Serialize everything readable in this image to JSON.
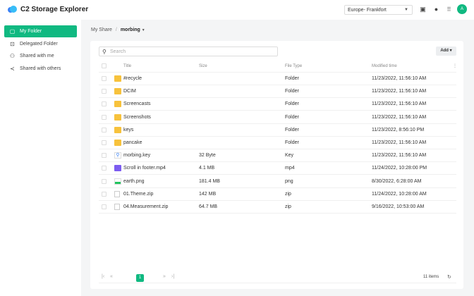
{
  "app": {
    "title": "C2 Storage Explorer",
    "region": "Europe- Frankfort",
    "avatar": "A",
    "accent": "#10b981"
  },
  "sidebar": {
    "items": [
      {
        "label": "My Folder",
        "icon": "folder-icon",
        "active": true
      },
      {
        "label": "Delegated Folder",
        "icon": "delegated-icon"
      },
      {
        "label": "Shared with me",
        "icon": "users-icon"
      },
      {
        "label": "Shared with others",
        "icon": "share-icon"
      }
    ]
  },
  "breadcrumb": {
    "root": "My Share",
    "sep": "/",
    "current": "morbing"
  },
  "toolbar": {
    "search_placeholder": "Search",
    "add_label": "Add"
  },
  "table": {
    "headers": [
      "Title",
      "Size",
      "File Type",
      "Modified time"
    ],
    "rows": [
      {
        "title": "#recycle",
        "size": "",
        "type": "Folder",
        "modified": "11/23/2022, 11:56:10 AM",
        "icon": "folder"
      },
      {
        "title": "DCIM",
        "size": "",
        "type": "Folder",
        "modified": "11/23/2022, 11:56:10 AM",
        "icon": "folder"
      },
      {
        "title": "Screencasts",
        "size": "",
        "type": "Folder",
        "modified": "11/23/2022, 11:56:10 AM",
        "icon": "folder"
      },
      {
        "title": "Screenshots",
        "size": "",
        "type": "Folder",
        "modified": "11/23/2022, 11:56:10 AM",
        "icon": "folder"
      },
      {
        "title": "keys",
        "size": "",
        "type": "Folder",
        "modified": "11/23/2022, 8:56:10 PM",
        "icon": "folder"
      },
      {
        "title": "pancake",
        "size": "",
        "type": "Folder",
        "modified": "11/23/2022, 11:56:10 AM",
        "icon": "folder"
      },
      {
        "title": "morbing.key",
        "size": "32 Byte",
        "type": "Key",
        "modified": "11/23/2022, 11:56:10 AM",
        "icon": "key"
      },
      {
        "title": "Scroll in footer.mp4",
        "size": "4.1 MB",
        "type": "mp4",
        "modified": "11/24/2022, 10:28:00 PM",
        "icon": "video"
      },
      {
        "title": "earth.png",
        "size": "181.4 MB",
        "type": "png",
        "modified": "8/30/2022, 6:28:00 AM",
        "icon": "image"
      },
      {
        "title": "01.Theme.zip",
        "size": "142 MB",
        "type": "zip",
        "modified": "11/24/2022, 10:28:00 AM",
        "icon": "zip"
      },
      {
        "title": "04.Measurement.zip",
        "size": "64.7 MB",
        "type": "zip",
        "modified": "9/16/2022, 10:53:00 AM",
        "icon": "zip"
      }
    ]
  },
  "pager": {
    "page": "1",
    "count": "11 items"
  }
}
